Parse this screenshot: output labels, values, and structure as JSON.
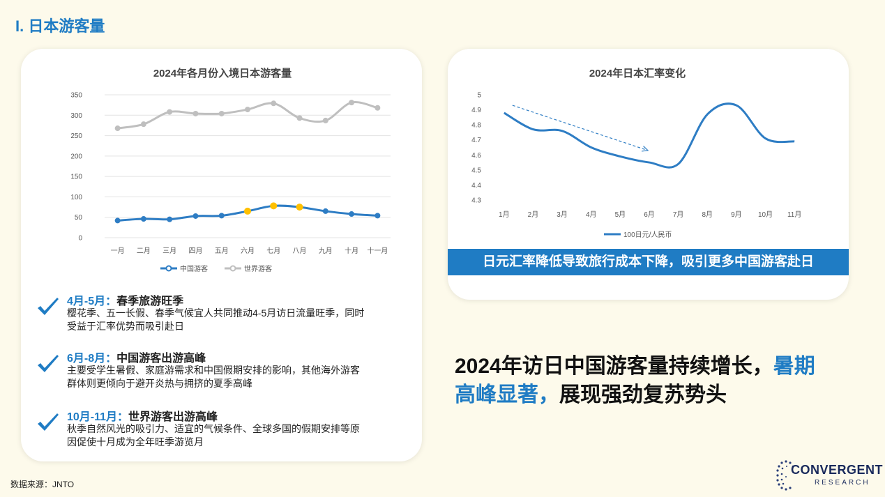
{
  "section_title": "I. 日本游客量",
  "left_chart_title": "2024年各月份入境日本游客量",
  "right_chart_title": "2024年日本汇率变化",
  "banner": "日元汇率降低导致旅行成本下降，吸引更多中国游客赴日",
  "bullets": [
    {
      "period": "4月-5月：",
      "title": "春季旅游旺季",
      "lines": [
        "樱花季、五一长假、春季气候宜人共同推动4-5月访日流量旺季，同时",
        "受益于汇率优势而吸引赴日"
      ]
    },
    {
      "period": "6月-8月：",
      "title": "中国游客出游高峰",
      "lines": [
        "主要受学生暑假、家庭游需求和中国假期安排的影响，其他海外游客",
        "群体则更倾向于避开炎热与拥挤的夏季高峰"
      ]
    },
    {
      "period": "10月-11月：",
      "title": "世界游客出游高峰",
      "lines": [
        "秋季自然风光的吸引力、适宜的气候条件、全球多国的假期安排等原",
        "因促使十月成为全年旺季游览月"
      ]
    }
  ],
  "headline": {
    "part1": "2024年访日中国游客量持续增长，",
    "part2": "暑期",
    "part3": "高峰显著，",
    "part4": "展现强劲复苏势头"
  },
  "source": "数据来源：JNTO",
  "logo": {
    "main": "CONVERGENT",
    "sub": "RESEARCH"
  },
  "colors": {
    "accent": "#1f7cc4",
    "china": "#2e7dc4",
    "world": "#bfbfbf",
    "highlight": "#ffc000",
    "background": "#fdfaeb"
  },
  "chart_data": [
    {
      "type": "line",
      "title": "2024年各月份入境日本游客量",
      "categories": [
        "一月",
        "二月",
        "三月",
        "四月",
        "五月",
        "六月",
        "七月",
        "八月",
        "九月",
        "十月",
        "十一月"
      ],
      "ylim": [
        0,
        350
      ],
      "yticks": [
        0,
        50,
        100,
        150,
        200,
        250,
        300,
        350
      ],
      "grid": true,
      "legend": "bottom",
      "series": [
        {
          "name": "中国游客",
          "values": [
            42,
            46,
            45,
            53,
            54,
            65,
            78,
            75,
            65,
            58,
            54
          ],
          "highlight_indices": [
            5,
            6,
            7
          ]
        },
        {
          "name": "世界游客",
          "values": [
            268,
            278,
            308,
            304,
            304,
            314,
            329,
            293,
            287,
            331,
            318
          ]
        }
      ]
    },
    {
      "type": "line",
      "title": "2024年日本汇率变化",
      "categories": [
        "1月",
        "2月",
        "3月",
        "4月",
        "5月",
        "6月",
        "7月",
        "8月",
        "9月",
        "10月",
        "11月"
      ],
      "ylim": [
        4.3,
        5
      ],
      "yticks": [
        4.3,
        4.4,
        4.5,
        4.6,
        4.7,
        4.8,
        4.9,
        5
      ],
      "grid": false,
      "legend": "bottom",
      "series": [
        {
          "name": "100日元/人民币",
          "values": [
            4.88,
            4.77,
            4.76,
            4.65,
            4.59,
            4.55,
            4.54,
            4.87,
            4.93,
            4.71,
            4.69
          ]
        }
      ],
      "annotation": "downward trend arrow (Jan to Jun)"
    }
  ]
}
